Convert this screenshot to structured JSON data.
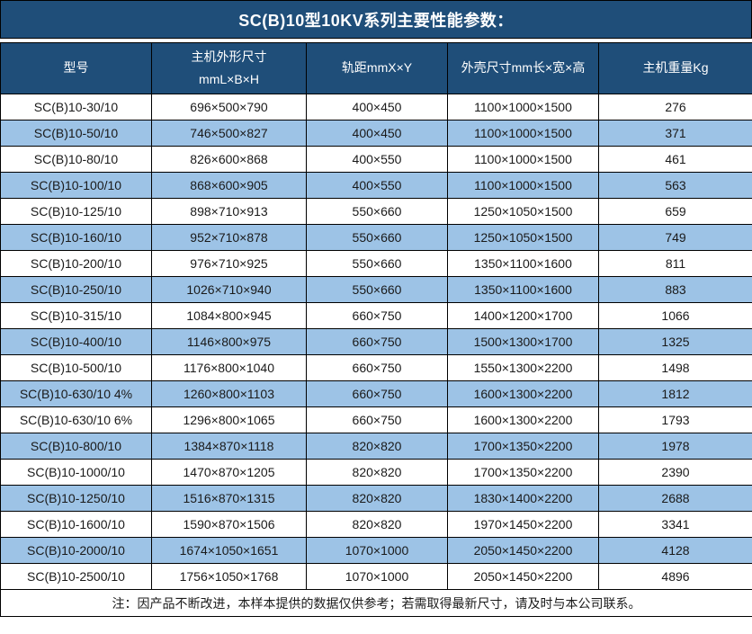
{
  "title": "SC(B)10型10KV系列主要性能参数：",
  "columns": [
    {
      "label": "型号"
    },
    {
      "label": "主机外形尺寸",
      "sub": "mmL×B×H"
    },
    {
      "label": "轨距mmX×Y"
    },
    {
      "label": "外壳尺寸mm长×宽×高"
    },
    {
      "label": "主机重量Kg"
    }
  ],
  "rows": [
    [
      "SC(B)10-30/10",
      "696×500×790",
      "400×450",
      "1100×1000×1500",
      "276"
    ],
    [
      "SC(B)10-50/10",
      "746×500×827",
      "400×450",
      "1100×1000×1500",
      "371"
    ],
    [
      "SC(B)10-80/10",
      "826×600×868",
      "400×550",
      "1100×1000×1500",
      "461"
    ],
    [
      "SC(B)10-100/10",
      "868×600×905",
      "400×550",
      "1100×1000×1500",
      "563"
    ],
    [
      "SC(B)10-125/10",
      "898×710×913",
      "550×660",
      "1250×1050×1500",
      "659"
    ],
    [
      "SC(B)10-160/10",
      "952×710×878",
      "550×660",
      "1250×1050×1500",
      "749"
    ],
    [
      "SC(B)10-200/10",
      "976×710×925",
      "550×660",
      "1350×1100×1600",
      "811"
    ],
    [
      "SC(B)10-250/10",
      "1026×710×940",
      "550×660",
      "1350×1100×1600",
      "883"
    ],
    [
      "SC(B)10-315/10",
      "1084×800×945",
      "660×750",
      "1400×1200×1700",
      "1066"
    ],
    [
      "SC(B)10-400/10",
      "1146×800×975",
      "660×750",
      "1500×1300×1700",
      "1325"
    ],
    [
      "SC(B)10-500/10",
      "1176×800×1040",
      "660×750",
      "1550×1300×2200",
      "1498"
    ],
    [
      "SC(B)10-630/10 4%",
      "1260×800×1103",
      "660×750",
      "1600×1300×2200",
      "1812"
    ],
    [
      "SC(B)10-630/10 6%",
      "1296×800×1065",
      "660×750",
      "1600×1300×2200",
      "1793"
    ],
    [
      "SC(B)10-800/10",
      "1384×870×1118",
      "820×820",
      "1700×1350×2200",
      "1978"
    ],
    [
      "SC(B)10-1000/10",
      "1470×870×1205",
      "820×820",
      "1700×1350×2200",
      "2390"
    ],
    [
      "SC(B)10-1250/10",
      "1516×870×1315",
      "820×820",
      "1830×1400×2200",
      "2688"
    ],
    [
      "SC(B)10-1600/10",
      "1590×870×1506",
      "820×820",
      "1970×1450×2200",
      "3341"
    ],
    [
      "SC(B)10-2000/10",
      "1674×1050×1651",
      "1070×1000",
      "2050×1450×2200",
      "4128"
    ],
    [
      "SC(B)10-2500/10",
      "1756×1050×1768",
      "1070×1000",
      "2050×1450×2200",
      "4896"
    ]
  ],
  "footnote": "注：因产品不断改进，本样本提供的数据仅供参考；若需取得最新尺寸，请及时与本公司联系。",
  "colors": {
    "title_bg": "#1F4E79",
    "header_bg": "#1F4E79",
    "row_even_bg": "#9DC3E6",
    "row_odd_bg": "#FFFFFF",
    "border": "#000000",
    "header_text": "#FFFFFF",
    "body_text": "#1A1A1A"
  }
}
